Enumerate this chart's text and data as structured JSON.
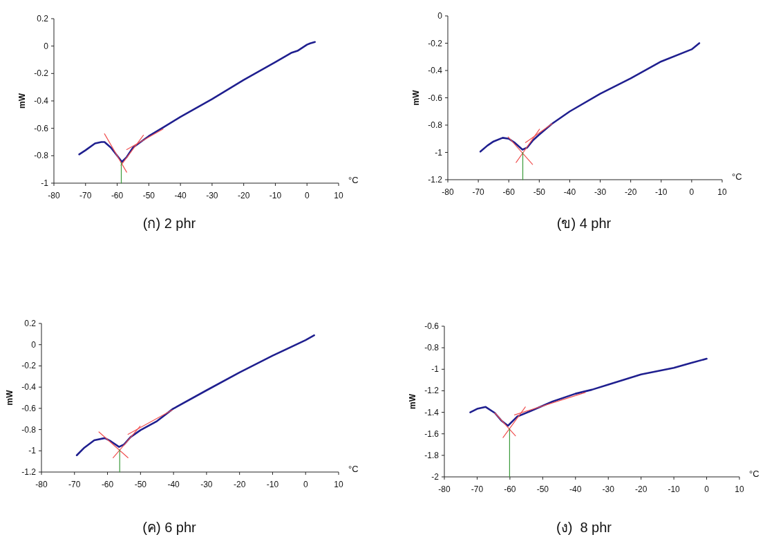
{
  "chart_data": [
    {
      "type": "line",
      "title": "(ก) 2 phr",
      "xlabel": "°C",
      "ylabel": "mW",
      "xlim": [
        -80,
        10
      ],
      "xticks": [
        -80,
        -70,
        -60,
        -50,
        -40,
        -30,
        -20,
        -10,
        0,
        10
      ],
      "ylim": [
        -1,
        0.2
      ],
      "yticks": [
        -1,
        -0.8,
        -0.6,
        -0.4,
        -0.2,
        0,
        0.2
      ],
      "series": [
        {
          "color": "#1f1f8f",
          "x": [
            -72,
            -70,
            -67,
            -65,
            -64,
            -62,
            -60,
            -58.5,
            -57,
            -55,
            -52,
            -50,
            -45,
            -40,
            -30,
            -20,
            -10,
            -5,
            -3,
            0,
            1,
            2.5
          ],
          "values": [
            -0.79,
            -0.76,
            -0.71,
            -0.7,
            -0.7,
            -0.74,
            -0.8,
            -0.845,
            -0.81,
            -0.74,
            -0.69,
            -0.657,
            -0.587,
            -0.517,
            -0.387,
            -0.247,
            -0.117,
            -0.05,
            -0.035,
            0.01,
            0.02,
            0.03
          ]
        },
        {
          "color": "#f05050",
          "x": [
            -64,
            -57
          ],
          "values": [
            -0.64,
            -0.92
          ]
        },
        {
          "color": "#f05050",
          "x": [
            -58.8,
            -51.7
          ],
          "values": [
            -0.87,
            -0.65
          ]
        },
        {
          "color": "#f05050",
          "x": [
            -57,
            -45.5
          ],
          "values": [
            -0.755,
            -0.605
          ]
        },
        {
          "color": "#3a9a3a",
          "x": [
            -58.7,
            -58.7
          ],
          "values": [
            -1,
            -0.85
          ]
        }
      ]
    },
    {
      "type": "line",
      "title": "(ข) 4 phr",
      "xlabel": "°C",
      "ylabel": "mW",
      "xlim": [
        -80,
        10
      ],
      "xticks": [
        -80,
        -70,
        -60,
        -50,
        -40,
        -30,
        -20,
        -10,
        0,
        10
      ],
      "ylim": [
        -1.2,
        0
      ],
      "yticks": [
        -1.2,
        -1,
        -0.8,
        -0.6,
        -0.4,
        -0.2,
        0
      ],
      "series": [
        {
          "color": "#1f1f8f",
          "x": [
            -69.3,
            -67,
            -65,
            -62,
            -60,
            -58,
            -55.5,
            -54,
            -52,
            -50,
            -45.8,
            -40,
            -30,
            -20,
            -10,
            0,
            2.5
          ],
          "values": [
            -0.994,
            -0.95,
            -0.92,
            -0.893,
            -0.9,
            -0.93,
            -0.98,
            -0.965,
            -0.91,
            -0.87,
            -0.79,
            -0.7,
            -0.57,
            -0.458,
            -0.334,
            -0.245,
            -0.2
          ]
        },
        {
          "color": "#f05050",
          "x": [
            -60.2,
            -52.2
          ],
          "values": [
            -0.887,
            -1.088
          ]
        },
        {
          "color": "#f05050",
          "x": [
            -57.6,
            -49.9
          ],
          "values": [
            -1.074,
            -0.83
          ]
        },
        {
          "color": "#f05050",
          "x": [
            -54.5,
            -45.8
          ],
          "values": [
            -0.928,
            -0.79
          ]
        },
        {
          "color": "#3a9a3a",
          "x": [
            -55.4,
            -55.4
          ],
          "values": [
            -1.2,
            -1.0
          ]
        }
      ]
    },
    {
      "type": "line",
      "title": "(ค) 6 phr",
      "xlabel": "°C",
      "ylabel": "mW",
      "xlim": [
        -80,
        10
      ],
      "xticks": [
        -80,
        -70,
        -60,
        -50,
        -40,
        -30,
        -20,
        -10,
        0,
        10
      ],
      "ylim": [
        -1.2,
        0.2
      ],
      "yticks": [
        -1.2,
        -1,
        -0.8,
        -0.6,
        -0.4,
        -0.2,
        0,
        0.2
      ],
      "series": [
        {
          "color": "#1f1f8f",
          "x": [
            -69.3,
            -67,
            -64,
            -60.8,
            -59,
            -56.5,
            -55,
            -53,
            -50,
            -45,
            -40.2,
            -30,
            -20,
            -10,
            0,
            2.6
          ],
          "values": [
            -1.042,
            -0.97,
            -0.9,
            -0.88,
            -0.91,
            -0.963,
            -0.94,
            -0.87,
            -0.805,
            -0.72,
            -0.605,
            -0.43,
            -0.261,
            -0.104,
            0.043,
            0.088
          ]
        },
        {
          "color": "#f05050",
          "x": [
            -62.6,
            -53.8
          ],
          "values": [
            -0.822,
            -1.065
          ]
        },
        {
          "color": "#f05050",
          "x": [
            -58.3,
            -50.1
          ],
          "values": [
            -1.065,
            -0.768
          ]
        },
        {
          "color": "#f05050",
          "x": [
            -53.8,
            -40.4
          ],
          "values": [
            -0.845,
            -0.615
          ]
        },
        {
          "color": "#3a9a3a",
          "x": [
            -56.3,
            -56.3
          ],
          "values": [
            -1.2,
            -0.99
          ]
        }
      ]
    },
    {
      "type": "line",
      "title": "(ง)  8 phr",
      "xlabel": "°C",
      "ylabel": "mW",
      "xlim": [
        -80,
        10
      ],
      "xticks": [
        -80,
        -70,
        -60,
        -50,
        -40,
        -30,
        -20,
        -10,
        0,
        10
      ],
      "ylim": [
        -2,
        -0.6
      ],
      "yticks": [
        -2,
        -1.8,
        -1.6,
        -1.4,
        -1.2,
        -1,
        -0.8,
        -0.6
      ],
      "series": [
        {
          "color": "#1f1f8f",
          "x": [
            -72.1,
            -70,
            -67.4,
            -64.6,
            -62.5,
            -60.6,
            -57.8,
            -54.2,
            -47,
            -40,
            -35,
            -30,
            -20,
            -10,
            -5,
            0
          ],
          "values": [
            -1.4,
            -1.368,
            -1.35,
            -1.406,
            -1.48,
            -1.525,
            -1.44,
            -1.395,
            -1.3,
            -1.227,
            -1.19,
            -1.142,
            -1.048,
            -0.987,
            -0.943,
            -0.902
          ]
        },
        {
          "color": "#f05050",
          "x": [
            -64.6,
            -58.3
          ],
          "values": [
            -1.406,
            -1.619
          ]
        },
        {
          "color": "#f05050",
          "x": [
            -62.1,
            -55.3
          ],
          "values": [
            -1.635,
            -1.35
          ]
        },
        {
          "color": "#f05050",
          "x": [
            -58.6,
            -37
          ],
          "values": [
            -1.424,
            -1.216
          ]
        },
        {
          "color": "#3a9a3a",
          "x": [
            -60.1,
            -60.1
          ],
          "values": [
            -2,
            -1.555
          ]
        }
      ]
    }
  ]
}
